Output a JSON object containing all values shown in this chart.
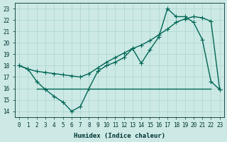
{
  "xlabel": "Humidex (Indice chaleur)",
  "bg_color": "#cce9e5",
  "grid_color": "#aad4cf",
  "line_color": "#006655",
  "xlim": [
    -0.5,
    23.5
  ],
  "ylim": [
    13.5,
    23.5
  ],
  "xticks": [
    0,
    1,
    2,
    3,
    4,
    5,
    6,
    7,
    8,
    9,
    10,
    11,
    12,
    13,
    14,
    15,
    16,
    17,
    18,
    19,
    20,
    21,
    22,
    23
  ],
  "yticks": [
    14,
    15,
    16,
    17,
    18,
    19,
    20,
    21,
    22,
    23
  ],
  "line1_x": [
    0,
    1,
    2,
    3,
    4,
    5,
    6,
    7,
    8,
    9,
    10,
    11,
    12,
    13,
    14,
    15,
    16,
    17,
    18,
    19,
    20,
    21,
    22,
    23
  ],
  "line1_y": [
    18.0,
    17.7,
    16.6,
    15.9,
    15.3,
    14.8,
    14.0,
    14.4,
    16.0,
    17.5,
    18.0,
    18.3,
    18.7,
    19.5,
    18.2,
    19.4,
    20.5,
    23.0,
    22.3,
    22.3,
    21.8,
    20.3,
    16.6,
    15.9
  ],
  "line2_x": [
    0,
    1,
    2,
    3,
    4,
    5,
    6,
    7,
    8,
    9,
    10,
    11,
    12,
    13,
    14,
    15,
    16,
    17,
    18,
    19,
    20,
    21,
    22,
    23
  ],
  "line2_y": [
    18.0,
    17.7,
    17.5,
    17.4,
    17.3,
    17.2,
    17.1,
    17.0,
    17.3,
    17.8,
    18.3,
    18.7,
    19.1,
    19.5,
    19.8,
    20.2,
    20.7,
    21.2,
    21.8,
    22.1,
    22.3,
    22.2,
    21.9,
    15.9
  ],
  "line3_x": [
    2,
    22
  ],
  "line3_y": [
    16.0,
    16.0
  ],
  "markersize": 2.5,
  "linewidth": 1.0
}
